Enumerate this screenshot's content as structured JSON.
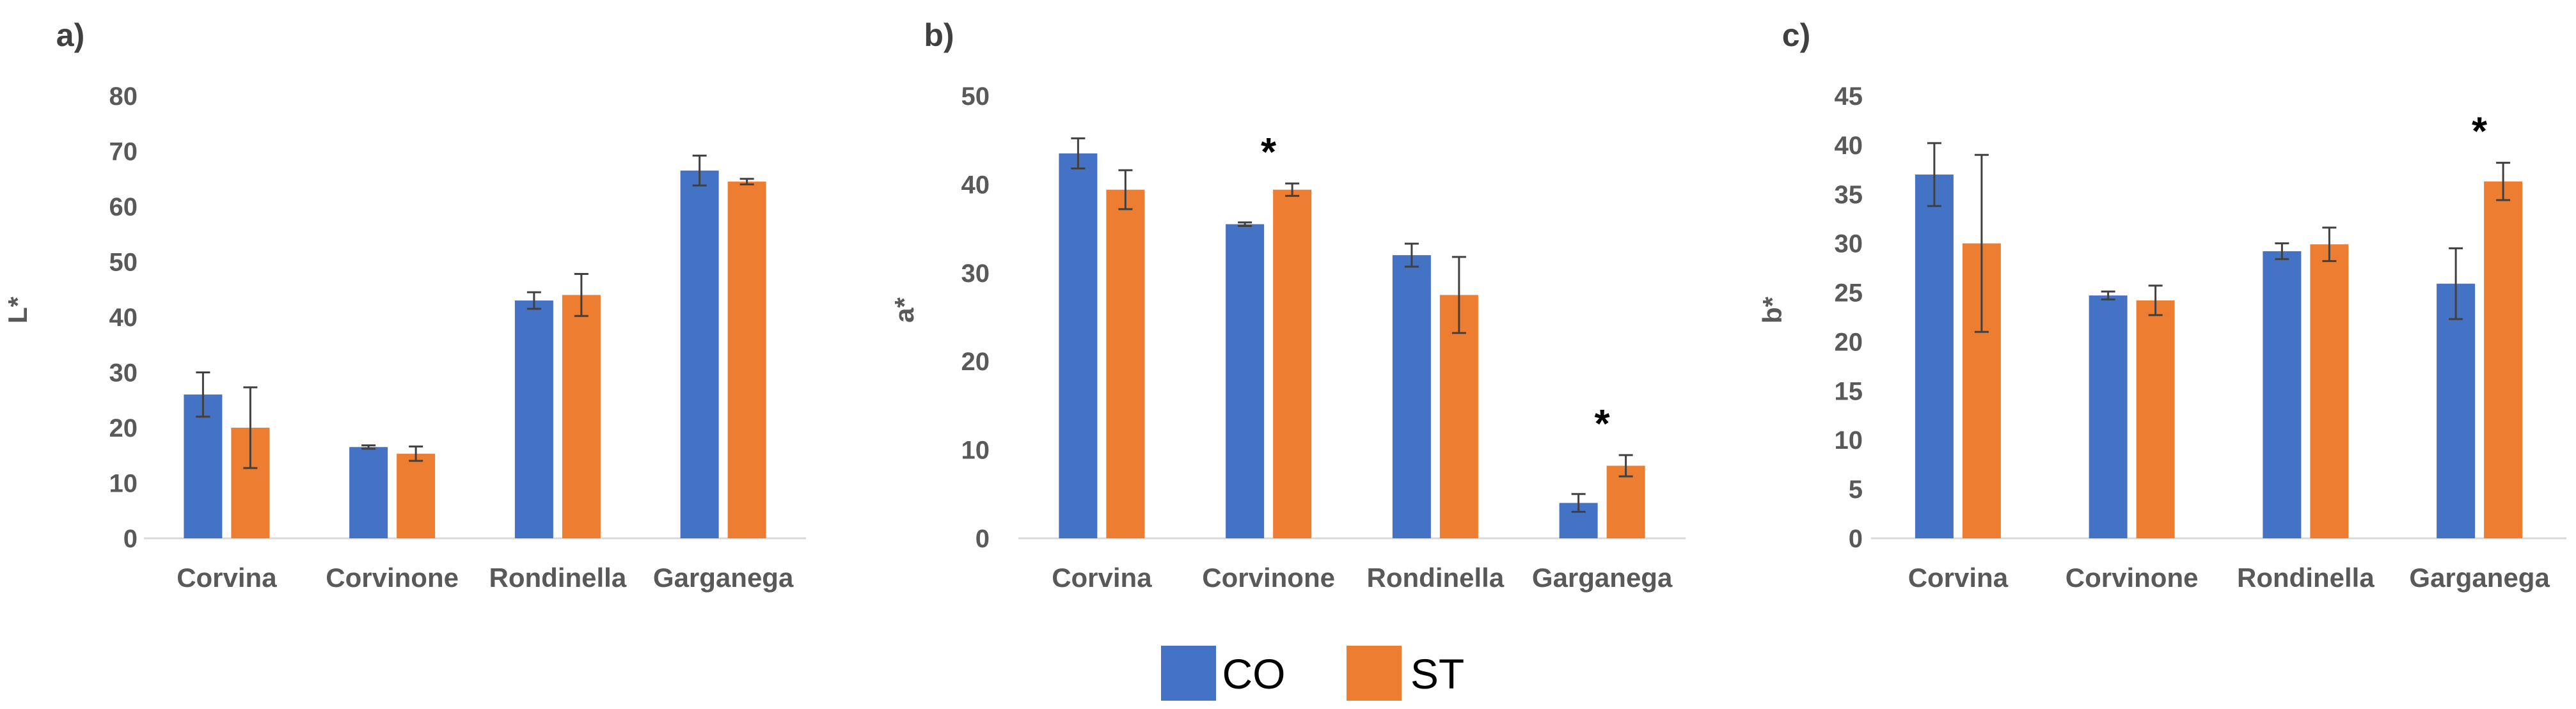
{
  "legend": [
    {
      "name": "CO",
      "color": "#4472C4"
    },
    {
      "name": "ST",
      "color": "#ED7D31"
    }
  ],
  "chart_data": [
    {
      "type": "bar",
      "panel_label": "a)",
      "ylabel": "L*",
      "ylim": [
        0,
        80
      ],
      "ytick_step": 10,
      "yticks": [
        "0",
        "10",
        "20",
        "30",
        "40",
        "50",
        "60",
        "70",
        "80"
      ],
      "categories": [
        "Corvina",
        "Corvinone",
        "Rondinella",
        "Garganega"
      ],
      "series": [
        {
          "name": "CO",
          "values": [
            26,
            16.5,
            43,
            66.5
          ],
          "errors": [
            4,
            0.3,
            1.5,
            2.7
          ]
        },
        {
          "name": "ST",
          "values": [
            20,
            15.3,
            44,
            64.5
          ],
          "errors": [
            7.3,
            1.3,
            3.8,
            0.5
          ]
        }
      ],
      "significance": [],
      "star_label": "*"
    },
    {
      "type": "bar",
      "panel_label": "b)",
      "ylabel": "a*",
      "ylim": [
        0,
        50
      ],
      "ytick_step": 10,
      "yticks": [
        "0",
        "10",
        "20",
        "30",
        "40",
        "50"
      ],
      "categories": [
        "Corvina",
        "Corvinone",
        "Rondinella",
        "Garganega"
      ],
      "series": [
        {
          "name": "CO",
          "values": [
            43.5,
            35.5,
            32,
            4
          ],
          "errors": [
            1.7,
            0.2,
            1.3,
            1
          ]
        },
        {
          "name": "ST",
          "values": [
            39.4,
            39.4,
            27.5,
            8.2
          ],
          "errors": [
            2.2,
            0.7,
            4.3,
            1.2
          ]
        }
      ],
      "significance": [
        1,
        3
      ],
      "star_label": "*"
    },
    {
      "type": "bar",
      "panel_label": "c)",
      "ylabel": "b*",
      "ylim": [
        0,
        45
      ],
      "ytick_step": 5,
      "yticks": [
        "0",
        "5",
        "10",
        "15",
        "20",
        "25",
        "30",
        "35",
        "40",
        "45"
      ],
      "categories": [
        "Corvina",
        "Corvinone",
        "Rondinella",
        "Garganega"
      ],
      "series": [
        {
          "name": "CO",
          "values": [
            37,
            24.7,
            29.2,
            25.9
          ],
          "errors": [
            3.2,
            0.4,
            0.8,
            3.6
          ]
        },
        {
          "name": "ST",
          "values": [
            30,
            24.2,
            29.9,
            36.3
          ],
          "errors": [
            9,
            1.5,
            1.7,
            1.9
          ]
        }
      ],
      "significance": [
        3
      ],
      "star_label": "*"
    }
  ]
}
